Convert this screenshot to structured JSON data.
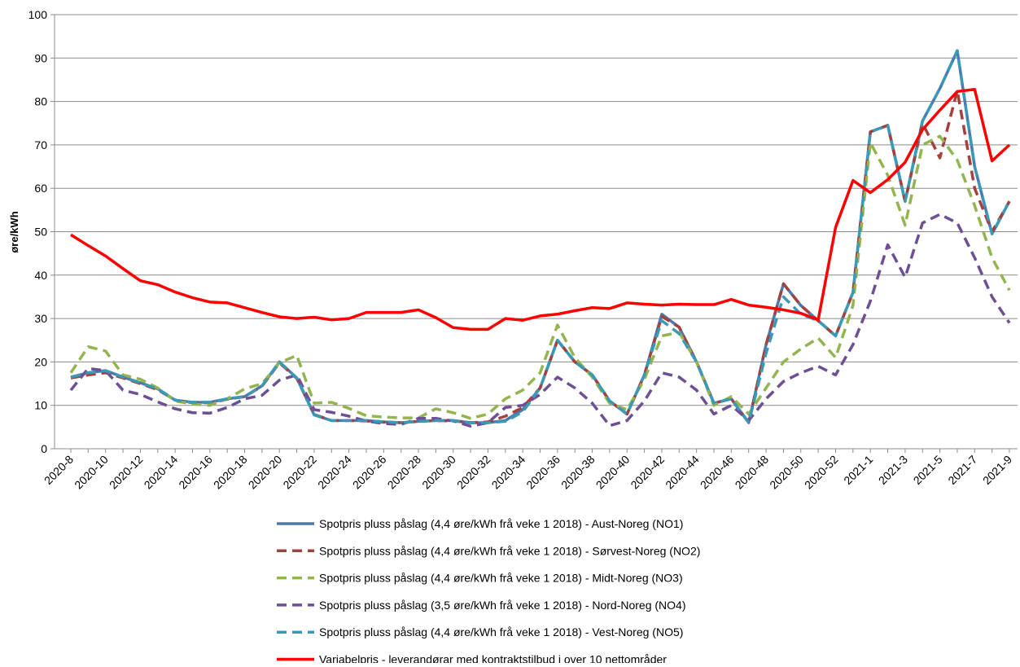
{
  "chart_data": {
    "type": "line",
    "y_label": "øre/kWh",
    "categories": [
      "2020-8",
      null,
      "2020-10",
      null,
      "2020-12",
      null,
      "2020-14",
      null,
      "2020-16",
      null,
      "2020-18",
      null,
      "2020-20",
      null,
      "2020-22",
      null,
      "2020-24",
      null,
      "2020-26",
      null,
      "2020-28",
      null,
      "2020-30",
      null,
      "2020-32",
      null,
      "2020-34",
      null,
      "2020-36",
      null,
      "2020-38",
      null,
      "2020-40",
      null,
      "2020-42",
      null,
      "2020-44",
      null,
      "2020-46",
      null,
      "2020-48",
      null,
      "2020-50",
      null,
      "2020-52",
      null,
      "2021-1",
      null,
      "2021-3",
      null,
      "2021-5",
      null,
      "2021-7",
      null,
      "2021-9"
    ],
    "ylim": [
      0,
      100
    ],
    "yticks": [
      0,
      10,
      20,
      30,
      40,
      50,
      60,
      70,
      80,
      90,
      100
    ],
    "grid": true,
    "series": [
      {
        "name": "Spotpris pluss påslag (4,4 øre/kWh frå veke 1 2018) - Aust-Noreg (NO1)",
        "color": "#4a7ab0",
        "dashed": false,
        "values": [
          16.5,
          17.5,
          18,
          16.5,
          15.2,
          13.8,
          11.2,
          10.7,
          10.7,
          11.5,
          12,
          14.5,
          20,
          16.3,
          7.8,
          6.5,
          6.5,
          6.5,
          6.2,
          6,
          6.3,
          6.5,
          6.5,
          6,
          6,
          6.5,
          9,
          14,
          25,
          20,
          17,
          11,
          8,
          17,
          31,
          28,
          20,
          10.5,
          11.5,
          6,
          24,
          38,
          33,
          29.5,
          26,
          36,
          73,
          74.5,
          57,
          75.5,
          83,
          91.7,
          65,
          49.5,
          57
        ]
      },
      {
        "name": "Spotpris pluss påslag (4,4 øre/kWh frå veke 1 2018) - Sørvest-Noreg (NO2)",
        "color": "#a5403d",
        "dashed": true,
        "values": [
          16.3,
          17,
          17.5,
          16.3,
          15,
          13.6,
          11.2,
          10.6,
          10.6,
          11.4,
          12,
          14.4,
          19.8,
          16.2,
          7.9,
          6.5,
          6.5,
          6.4,
          6.1,
          6,
          6.3,
          6.5,
          6.4,
          6,
          6.2,
          7.5,
          9.5,
          14,
          25,
          20,
          17,
          11,
          8,
          17,
          30.5,
          28,
          20,
          10.5,
          11.5,
          6,
          24,
          38,
          33,
          29.5,
          26,
          36,
          73,
          74.5,
          57,
          75,
          67,
          82.5,
          60,
          50,
          57
        ]
      },
      {
        "name": "Spotpris pluss påslag (4,4 øre/kWh frå veke 1 2018) - Midt-Noreg (NO3)",
        "color": "#93b550",
        "dashed": true,
        "values": [
          17.5,
          23.5,
          22.5,
          17,
          16,
          14,
          11,
          10.3,
          10,
          11.5,
          13.8,
          15,
          19.8,
          21.5,
          10.5,
          10.7,
          9.3,
          7.6,
          7.3,
          7.1,
          7.1,
          9.2,
          8.3,
          7,
          8,
          11.5,
          13.5,
          17.5,
          28.5,
          21,
          16.5,
          10.5,
          9,
          16,
          26,
          26.8,
          20,
          10,
          12,
          8,
          14,
          20,
          23,
          25.5,
          21,
          33,
          70.5,
          63,
          51.5,
          70,
          72,
          66.5,
          56,
          44,
          36.5
        ]
      },
      {
        "name": "Spotpris pluss påslag (3,5 øre/kWh frå veke 1 2018) - Nord-Noreg (NO4)",
        "color": "#6e4f93",
        "dashed": true,
        "values": [
          13.5,
          18.5,
          18,
          13.5,
          12.5,
          10.8,
          9.2,
          8.3,
          8.2,
          9.5,
          11.5,
          12.3,
          15.8,
          17,
          9,
          8.4,
          7.5,
          6.4,
          5.8,
          5.6,
          7,
          7,
          6.4,
          5.2,
          6,
          9.5,
          10,
          12.5,
          16.5,
          14,
          10.5,
          5.3,
          6.5,
          11,
          17.5,
          16.5,
          13.5,
          8,
          10,
          6.5,
          11.5,
          15.5,
          17.5,
          19,
          17,
          24,
          34,
          47,
          39.5,
          52,
          54,
          52,
          44,
          35,
          29
        ]
      },
      {
        "name": "Spotpris pluss påslag (4,4 øre/kWh frå veke 1 2018) - Vest-Noreg (NO5)",
        "color": "#3a9ab6",
        "dashed": true,
        "values": [
          16.5,
          17.5,
          18,
          16.5,
          15.2,
          13.8,
          11.2,
          10.7,
          10.7,
          11.5,
          12,
          14.5,
          20,
          16.3,
          7.8,
          6.5,
          6.5,
          6.5,
          6.2,
          6,
          6.3,
          6.5,
          6.5,
          6,
          6,
          6.3,
          8.5,
          14,
          25,
          20,
          17,
          11,
          8,
          17,
          29.5,
          26.5,
          20,
          10.5,
          11.5,
          6,
          22,
          35,
          31,
          29.5,
          26,
          36,
          73,
          74.5,
          57,
          75.5,
          83,
          91.7,
          65,
          49.5,
          57
        ]
      },
      {
        "name": "Variabelpris - leverandørar med kontraktstilbud i over 10 nettområder",
        "color": "#ff0000",
        "dashed": false,
        "values": [
          49.3,
          46.8,
          44.4,
          41.5,
          38.7,
          37.8,
          36.1,
          34.8,
          33.8,
          33.6,
          32.5,
          31.4,
          30.4,
          30,
          30.3,
          29.7,
          30,
          31.4,
          31.4,
          31.4,
          32,
          30.2,
          27.9,
          27.5,
          27.5,
          30,
          29.6,
          30.6,
          31,
          31.8,
          32.5,
          32.3,
          33.6,
          33.3,
          33.1,
          33.3,
          33.2,
          33.2,
          34.4,
          33.1,
          32.6,
          32,
          31.2,
          29.7,
          51,
          61.8,
          59,
          62,
          66,
          73.5,
          78,
          82.3,
          82.8,
          66.3,
          70
        ]
      }
    ]
  }
}
